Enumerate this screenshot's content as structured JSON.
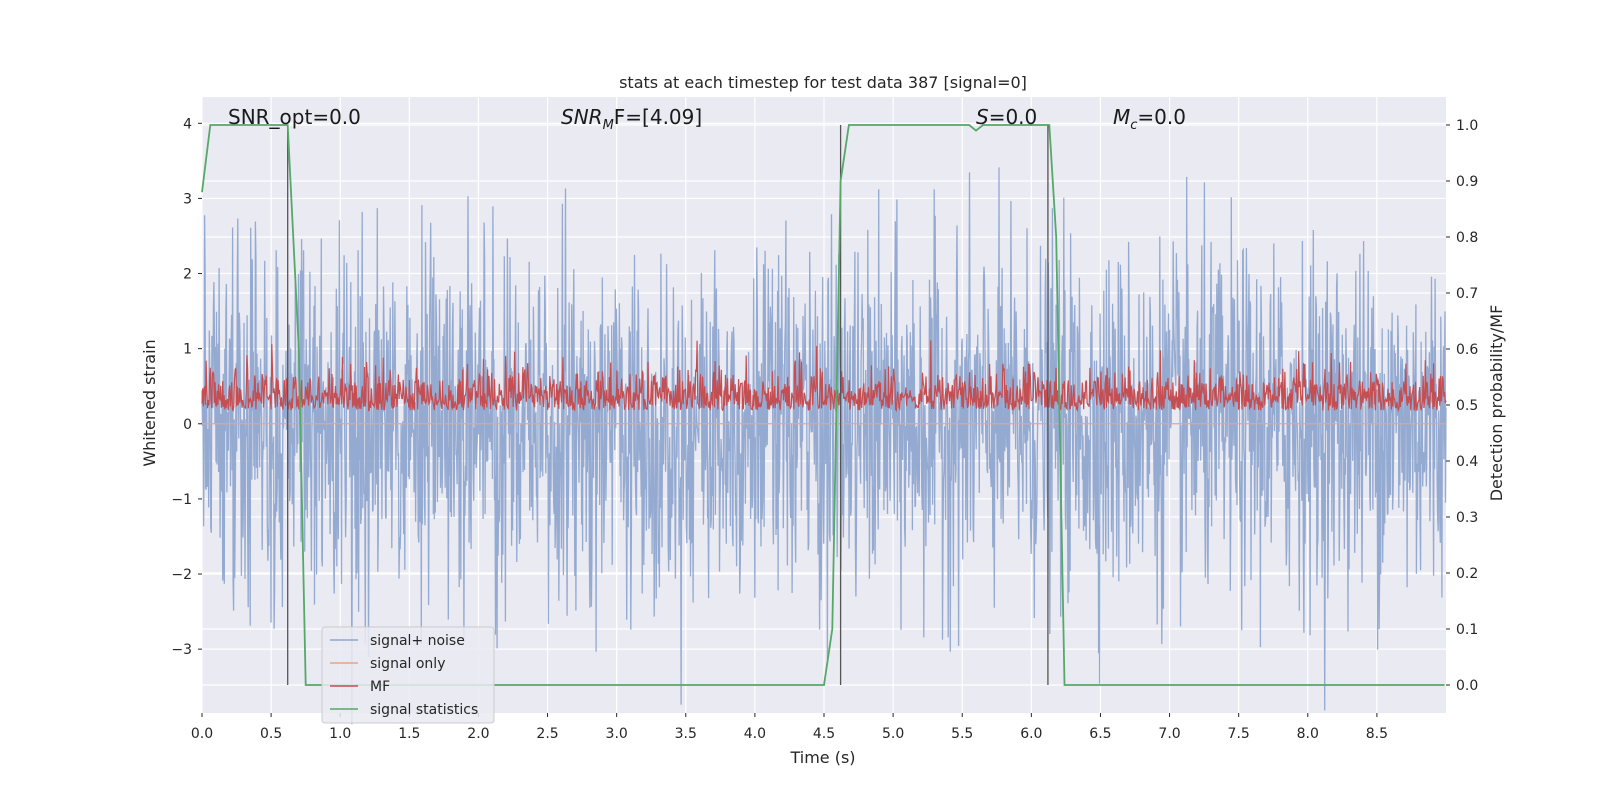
{
  "chart_data": {
    "type": "line",
    "title": "stats at each timestep for test data 387 [signal=0]",
    "xlabel": "Time (s)",
    "ylabel_left": "Whitened strain",
    "ylabel_right": "Detection probability/MF",
    "xlim": [
      0,
      9.0
    ],
    "ylim_left": [
      -3.85,
      4.35
    ],
    "ylim_right": [
      -0.05,
      1.05
    ],
    "x_ticks": [
      0.0,
      0.5,
      1.0,
      1.5,
      2.0,
      2.5,
      3.0,
      3.5,
      4.0,
      4.5,
      5.0,
      5.5,
      6.0,
      6.5,
      7.0,
      7.5,
      8.0,
      8.5
    ],
    "x_tick_labels": [
      "0.0",
      "0.5",
      "1.0",
      "1.5",
      "2.0",
      "2.5",
      "3.0",
      "3.5",
      "4.0",
      "4.5",
      "5.0",
      "5.5",
      "6.0",
      "6.5",
      "7.0",
      "7.5",
      "8.0",
      "8.5"
    ],
    "y_ticks_left": [
      -3,
      -2,
      -1,
      0,
      1,
      2,
      3,
      4
    ],
    "y_tick_labels_left": [
      "−3",
      "−2",
      "−1",
      "0",
      "1",
      "2",
      "3",
      "4"
    ],
    "y_ticks_right": [
      0.0,
      0.1,
      0.2,
      0.3,
      0.4,
      0.5,
      0.6,
      0.7,
      0.8,
      0.9,
      1.0
    ],
    "y_tick_labels_right": [
      "0.0",
      "0.1",
      "0.2",
      "0.3",
      "0.4",
      "0.5",
      "0.6",
      "0.7",
      "0.8",
      "0.9",
      "1.0"
    ],
    "grid": true,
    "legend_position": "lower-left",
    "annotations": {
      "snr_opt": "SNR_opt=0.0",
      "snr_mf_main": "SNR",
      "snr_mf_sub": "M",
      "snr_mf_rest": "F=[4.09]",
      "s_main": "S",
      "s_rest": "=0.0",
      "mc_main": "M",
      "mc_sub": "c",
      "mc_rest": "=0.0"
    },
    "series": [
      {
        "name": "signal+ noise",
        "axis": "left",
        "color": "#8fa6cf",
        "description_values": {
          "abs_max": 4.0,
          "typical_abs": 1.2
        }
      },
      {
        "name": "signal only",
        "axis": "left",
        "color": "#e8a38a",
        "values_constant": 0.0
      },
      {
        "name": "MF",
        "axis": "right",
        "color": "#c44e52",
        "description_values": {
          "baseline": 0.5,
          "max": 0.63
        }
      },
      {
        "name": "signal statistics",
        "axis": "right",
        "color": "#55a868",
        "x": [
          0.0,
          0.06,
          0.6,
          0.62,
          0.7,
          0.75,
          0.8,
          1.0,
          4.5,
          4.56,
          4.62,
          4.68,
          5.5,
          5.55,
          5.6,
          5.65,
          5.7,
          5.8,
          6.1,
          6.13,
          6.18,
          6.24,
          6.3,
          8.99
        ],
        "y": [
          0.88,
          1.0,
          1.0,
          1.0,
          0.6,
          0.0,
          0.0,
          0.0,
          0.0,
          0.1,
          0.9,
          1.0,
          1.0,
          1.0,
          0.99,
          1.0,
          1.0,
          1.0,
          1.0,
          1.0,
          0.8,
          0.0,
          0.0,
          0.0
        ]
      }
    ],
    "vertical_markers_x": [
      0.62,
      4.62,
      6.12
    ]
  }
}
